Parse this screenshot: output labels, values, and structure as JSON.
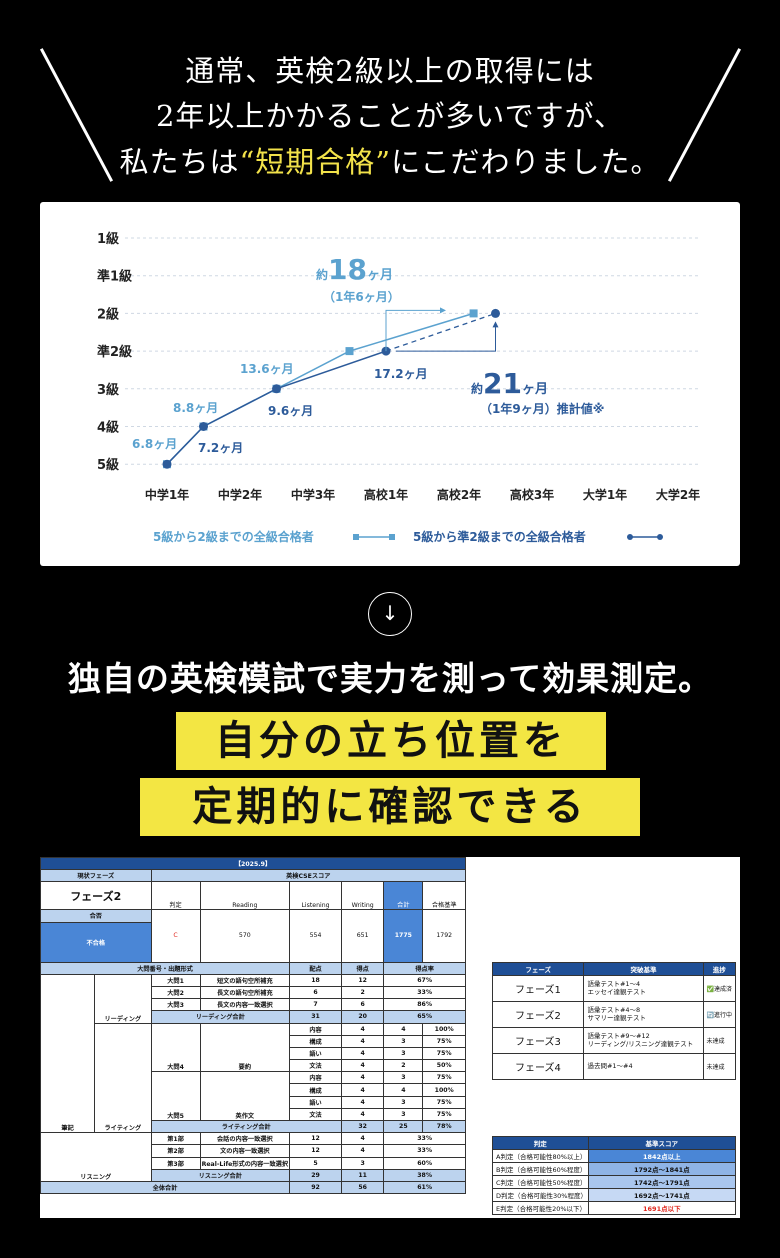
{
  "hero": {
    "line1": "通常、英検2級以上の取得には",
    "line2": "2年以上かかることが多いですが、",
    "line3_pre": "私たちは",
    "line3_highlight": "“短期合格”",
    "line3_post": "にこだわりました。"
  },
  "chart_data": {
    "type": "line",
    "y_categories": [
      "5級",
      "4級",
      "3級",
      "準2級",
      "2級",
      "準1級",
      "1級"
    ],
    "x_categories": [
      "中学1年",
      "中学2年",
      "中学3年",
      "高校1年",
      "高校2年",
      "高校3年",
      "大学1年",
      "大学2年"
    ],
    "series": [
      {
        "name": "5級から2級までの全級合格者",
        "color": "#5ba2cf",
        "marker": "square",
        "points": [
          [
            0,
            0
          ],
          [
            0.5,
            1
          ],
          [
            1.5,
            2
          ],
          [
            2.5,
            3
          ],
          [
            4.2,
            4
          ]
        ]
      },
      {
        "name": "5級から準2級までの全級合格者",
        "color": "#2d5b9a",
        "marker": "circle",
        "points": [
          [
            0,
            0
          ],
          [
            0.5,
            1
          ],
          [
            1.5,
            2
          ],
          [
            3,
            3
          ]
        ],
        "projection": [
          [
            3,
            3
          ],
          [
            4.5,
            4
          ]
        ]
      }
    ],
    "annotations": {
      "s1": [
        "6.8ヶ月",
        "8.8ヶ月",
        "13.6ヶ月"
      ],
      "s2": [
        "7.2ヶ月",
        "9.6ヶ月",
        "17.2ヶ月"
      ],
      "top_prefix": "約",
      "top_num": "18",
      "top_unit": "ヶ月",
      "top_sub": "（1年6ヶ月）",
      "bottom_prefix": "約",
      "bottom_num": "21",
      "bottom_unit": "ヶ月",
      "bottom_sub": "（1年9ヶ月）推計値※"
    },
    "legend_position": "bottom",
    "grid": true
  },
  "arrow": "↓",
  "message": "独自の英検模試で実力を測って効果測定。",
  "band1": "自分の立ち位置を",
  "band2": "定期的に確認できる",
  "sheet": {
    "title": "【2025.9】",
    "phase_header": "現状フェーズ",
    "score_header": "英検CSEスコア",
    "phase": "フェーズ2",
    "pass_label": "合否",
    "pass_value": "不合格",
    "col_heads": [
      "判定",
      "Reading",
      "Listening",
      "Writing",
      "合計",
      "合格基準"
    ],
    "judge": "C",
    "scores": [
      "570",
      "554",
      "651",
      "1775",
      "1792"
    ],
    "detail_heads": [
      "大問番号・出題形式",
      "配点",
      "得点",
      "得点率"
    ],
    "rows": [
      [
        "大問1",
        "短文の語句空所補充",
        "18",
        "12",
        "67%"
      ],
      [
        "大問2",
        "長文の語句空所補充",
        "6",
        "2",
        "33%"
      ],
      [
        "大問3",
        "長文の内容一致選択",
        "7",
        "6",
        "86%"
      ],
      [
        "リーディング合計",
        "",
        "31",
        "20",
        "65%"
      ],
      [
        "内容",
        "",
        "4",
        "4",
        "100%"
      ],
      [
        "構成",
        "",
        "4",
        "3",
        "75%"
      ],
      [
        "語い",
        "",
        "4",
        "3",
        "75%"
      ],
      [
        "文法",
        "",
        "4",
        "2",
        "50%"
      ],
      [
        "内容",
        "",
        "4",
        "3",
        "75%"
      ],
      [
        "構成",
        "",
        "4",
        "4",
        "100%"
      ],
      [
        "語い",
        "",
        "4",
        "3",
        "75%"
      ],
      [
        "文法",
        "",
        "4",
        "3",
        "75%"
      ],
      [
        "ライティング合計",
        "",
        "32",
        "25",
        "78%"
      ],
      [
        "第1部",
        "会話の内容一致選択",
        "12",
        "4",
        "33%"
      ],
      [
        "第2部",
        "文の内容一致選択",
        "12",
        "4",
        "33%"
      ],
      [
        "第3部",
        "Real-Life形式の内容一致選択",
        "5",
        "3",
        "60%"
      ],
      [
        "リスニング合計",
        "",
        "29",
        "11",
        "38%"
      ],
      [
        "全体合計",
        "",
        "92",
        "56",
        "61%"
      ]
    ],
    "sections": {
      "reading": "リーディング",
      "writing": "ライティング",
      "listening": "リスニング",
      "hikki": "筆記",
      "q4": "大問4",
      "q4b": "要約",
      "q5": "大問5",
      "q5b": "英作文"
    },
    "phase_table": {
      "heads": [
        "フェーズ",
        "突破基準",
        "進捗"
      ],
      "rows": [
        [
          "フェーズ1",
          "語彙テスト#1〜4\nエッセイ達観テスト",
          "✅達成済"
        ],
        [
          "フェーズ2",
          "語彙テスト#4〜8\nサマリー達観テスト",
          "🔄進行中"
        ],
        [
          "フェーズ3",
          "語彙テスト#9〜#12\nリーディング/リスニング達観テスト",
          "未達成"
        ],
        [
          "フェーズ4",
          "過去問#1〜#4",
          "未達成"
        ]
      ]
    },
    "criteria_table": {
      "heads": [
        "判定",
        "基準スコア"
      ],
      "rows": [
        [
          "A判定（合格可能性80%以上）",
          "1842点以上",
          "#4a86d6"
        ],
        [
          "B判定（合格可能性60%程度）",
          "1792点〜1841点",
          "#8fb4e6"
        ],
        [
          "C判定（合格可能性50%程度）",
          "1742点〜1791点",
          "#a9c6ee"
        ],
        [
          "D判定（合格可能性30%程度）",
          "1692点〜1741点",
          "#c6d9f4"
        ],
        [
          "E判定（合格可能性20%以下）",
          "1691点以下",
          "#ffffff"
        ]
      ]
    }
  }
}
